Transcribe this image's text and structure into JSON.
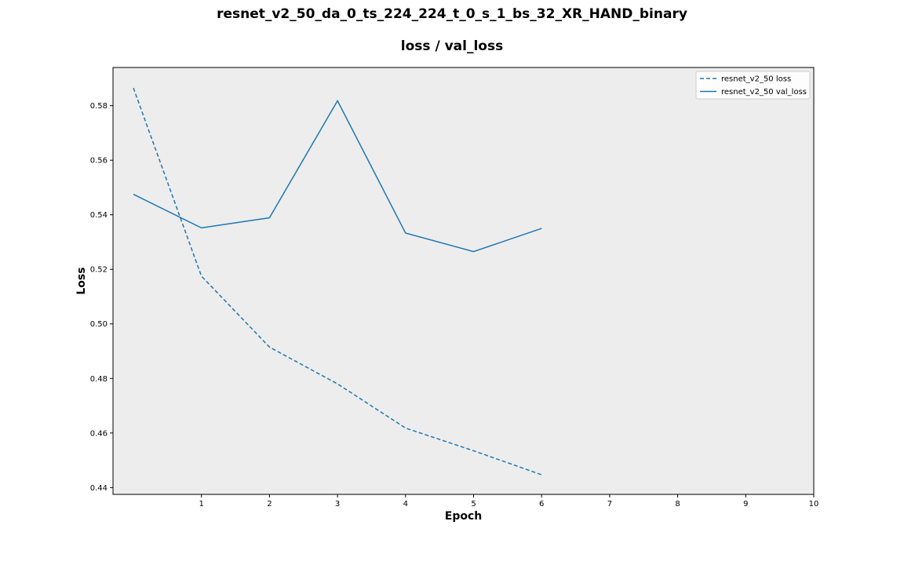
{
  "chart_data": {
    "type": "line",
    "title": "resnet_v2_50_da_0_ts_224_224_t_0_s_1_bs_32_XR_HAND_binary",
    "subtitle": "loss / val_loss",
    "xlabel": "Epoch",
    "ylabel": "Loss",
    "xlim": [
      -0.3,
      10
    ],
    "ylim": [
      0.4375,
      0.594
    ],
    "x_ticks": [
      1,
      2,
      3,
      4,
      5,
      6,
      7,
      8,
      9,
      10
    ],
    "y_ticks": [
      0.44,
      0.46,
      0.48,
      0.5,
      0.52,
      0.54,
      0.56,
      0.58
    ],
    "y_tick_labels": [
      "0.44",
      "0.46",
      "0.48",
      "0.50",
      "0.52",
      "0.54",
      "0.56",
      "0.58"
    ],
    "grid": false,
    "background": "#ededed",
    "legend_position": "top-right",
    "series": [
      {
        "name": "resnet_v2_50 loss",
        "style": "dashed",
        "color": "#1f77b4",
        "x": [
          0,
          1,
          2,
          3,
          4,
          5,
          6
        ],
        "y": [
          0.5865,
          0.5175,
          0.4915,
          0.478,
          0.4618,
          0.4535,
          0.4447
        ]
      },
      {
        "name": "resnet_v2_50 val_loss",
        "style": "solid",
        "color": "#1f77b4",
        "x": [
          0,
          1,
          2,
          3,
          4,
          5,
          6
        ],
        "y": [
          0.5475,
          0.5352,
          0.5389,
          0.5818,
          0.5333,
          0.5265,
          0.535
        ]
      }
    ]
  }
}
